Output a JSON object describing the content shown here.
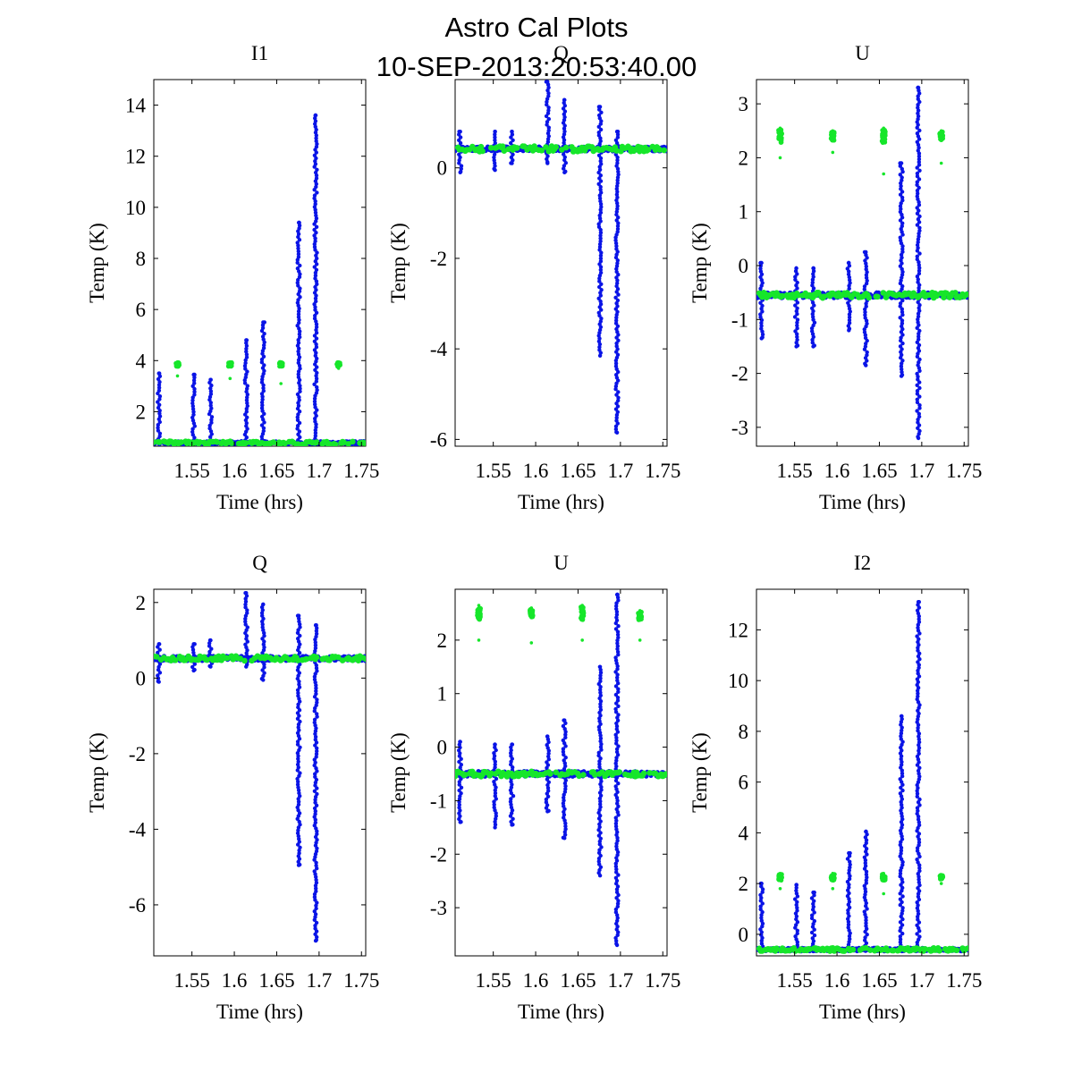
{
  "figure": {
    "title_lines": [
      "Astro Cal Plots",
      "10-SEP-2013:20:53:40.00"
    ],
    "colors": {
      "cal_series": "#0a14e6",
      "source_series": "#16e62a",
      "background": "#ffffff",
      "axes": "#000000"
    }
  },
  "chart_data": [
    {
      "type": "scatter",
      "title": "I1",
      "xlabel": "Time (hrs)",
      "ylabel": "Temp (K)",
      "xlim": [
        1.505,
        1.755
      ],
      "ylim": [
        0.65,
        15.0
      ],
      "xticks": [
        1.55,
        1.6,
        1.65,
        1.7,
        1.75
      ],
      "xtick_labels": [
        "1.55",
        "1.6",
        "1.65",
        "1.7",
        "1.75"
      ],
      "yticks": [
        2,
        4,
        6,
        8,
        10,
        12,
        14
      ],
      "ytick_labels": [
        "2",
        "4",
        "6",
        "8",
        "10",
        "12",
        "14"
      ],
      "series": [
        {
          "color": "#0a14e6",
          "baseline": 0.78,
          "noise": 0.06,
          "spikes": [
            {
              "x": 1.511,
              "min": 0.75,
              "max": 3.5
            },
            {
              "x": 1.552,
              "min": 0.75,
              "max": 3.45
            },
            {
              "x": 1.572,
              "min": 0.75,
              "max": 3.25
            },
            {
              "x": 1.614,
              "min": 0.75,
              "max": 4.8
            },
            {
              "x": 1.634,
              "min": 0.75,
              "max": 5.5
            },
            {
              "x": 1.676,
              "min": 0.75,
              "max": 9.4
            },
            {
              "x": 1.696,
              "min": 0.75,
              "max": 13.6
            }
          ]
        },
        {
          "color": "#16e62a",
          "baseline": 0.78,
          "noise": 0.06,
          "clusters": [
            {
              "x": 1.533,
              "center": 3.85,
              "min": 3.4,
              "max": 3.95
            },
            {
              "x": 1.595,
              "center": 3.85,
              "min": 3.3,
              "max": 3.95
            },
            {
              "x": 1.655,
              "center": 3.85,
              "min": 3.1,
              "max": 3.95
            },
            {
              "x": 1.723,
              "center": 3.85,
              "min": 3.7,
              "max": 3.95
            }
          ]
        }
      ]
    },
    {
      "type": "scatter",
      "title": "Q",
      "xlabel": "Time (hrs)",
      "ylabel": "Temp (K)",
      "xlim": [
        1.505,
        1.755
      ],
      "ylim": [
        -6.15,
        1.95
      ],
      "xticks": [
        1.55,
        1.6,
        1.65,
        1.7,
        1.75
      ],
      "xtick_labels": [
        "1.55",
        "1.6",
        "1.65",
        "1.7",
        "1.75"
      ],
      "yticks": [
        -6,
        -4,
        -2,
        0
      ],
      "ytick_labels": [
        "-6",
        "-4",
        "-2",
        "0"
      ],
      "series": [
        {
          "color": "#0a14e6",
          "baseline": 0.42,
          "noise": 0.05,
          "spikes": [
            {
              "x": 1.511,
              "min": -0.1,
              "max": 0.8
            },
            {
              "x": 1.552,
              "min": -0.05,
              "max": 0.8
            },
            {
              "x": 1.572,
              "min": 0.1,
              "max": 0.8
            },
            {
              "x": 1.614,
              "min": 0.1,
              "max": 1.9
            },
            {
              "x": 1.634,
              "min": -0.1,
              "max": 1.5
            },
            {
              "x": 1.676,
              "min": -4.15,
              "max": 1.35
            },
            {
              "x": 1.696,
              "min": -5.85,
              "max": 0.8
            }
          ]
        },
        {
          "color": "#16e62a",
          "baseline": 0.42,
          "noise": 0.06,
          "clusters": []
        }
      ]
    },
    {
      "type": "scatter",
      "title": "U",
      "xlabel": "Time (hrs)",
      "ylabel": "Temp (K)",
      "xlim": [
        1.505,
        1.755
      ],
      "ylim": [
        -3.35,
        3.45
      ],
      "xticks": [
        1.55,
        1.6,
        1.65,
        1.7,
        1.75
      ],
      "xtick_labels": [
        "1.55",
        "1.6",
        "1.65",
        "1.7",
        "1.75"
      ],
      "yticks": [
        -3,
        -2,
        -1,
        0,
        1,
        2,
        3
      ],
      "ytick_labels": [
        "-3",
        "-2",
        "-1",
        "0",
        "1",
        "2",
        "3"
      ],
      "series": [
        {
          "color": "#0a14e6",
          "baseline": -0.55,
          "noise": 0.05,
          "spikes": [
            {
              "x": 1.511,
              "min": -1.35,
              "max": 0.05
            },
            {
              "x": 1.552,
              "min": -1.5,
              "max": -0.05
            },
            {
              "x": 1.572,
              "min": -1.5,
              "max": -0.05
            },
            {
              "x": 1.614,
              "min": -1.2,
              "max": 0.05
            },
            {
              "x": 1.634,
              "min": -1.85,
              "max": 0.25
            },
            {
              "x": 1.676,
              "min": -2.05,
              "max": 1.9
            },
            {
              "x": 1.696,
              "min": -3.2,
              "max": 3.3
            }
          ]
        },
        {
          "color": "#16e62a",
          "baseline": -0.55,
          "noise": 0.05,
          "clusters": [
            {
              "x": 1.533,
              "center": 2.4,
              "min": 2.0,
              "max": 2.55
            },
            {
              "x": 1.595,
              "center": 2.4,
              "min": 2.1,
              "max": 2.5
            },
            {
              "x": 1.655,
              "center": 2.4,
              "min": 1.7,
              "max": 2.55
            },
            {
              "x": 1.723,
              "center": 2.4,
              "min": 1.9,
              "max": 2.5
            }
          ]
        }
      ]
    },
    {
      "type": "scatter",
      "title": "Q",
      "xlabel": "Time (hrs)",
      "ylabel": "Temp (K)",
      "xlim": [
        1.505,
        1.755
      ],
      "ylim": [
        -7.35,
        2.35
      ],
      "xticks": [
        1.55,
        1.6,
        1.65,
        1.7,
        1.75
      ],
      "xtick_labels": [
        "1.55",
        "1.6",
        "1.65",
        "1.7",
        "1.75"
      ],
      "yticks": [
        -6,
        -4,
        -2,
        0,
        2
      ],
      "ytick_labels": [
        "-6",
        "-4",
        "-2",
        "0",
        "2"
      ],
      "series": [
        {
          "color": "#0a14e6",
          "baseline": 0.52,
          "noise": 0.06,
          "spikes": [
            {
              "x": 1.511,
              "min": -0.1,
              "max": 0.9
            },
            {
              "x": 1.552,
              "min": 0.2,
              "max": 0.9
            },
            {
              "x": 1.572,
              "min": 0.3,
              "max": 1.0
            },
            {
              "x": 1.614,
              "min": 0.3,
              "max": 2.25
            },
            {
              "x": 1.634,
              "min": -0.05,
              "max": 1.95
            },
            {
              "x": 1.676,
              "min": -4.95,
              "max": 1.65
            },
            {
              "x": 1.696,
              "min": -6.95,
              "max": 1.4
            }
          ]
        },
        {
          "color": "#16e62a",
          "baseline": 0.52,
          "noise": 0.06,
          "clusters": []
        }
      ]
    },
    {
      "type": "scatter",
      "title": "U",
      "xlabel": "Time (hrs)",
      "ylabel": "Temp (K)",
      "xlim": [
        1.505,
        1.755
      ],
      "ylim": [
        -3.9,
        2.95
      ],
      "xticks": [
        1.55,
        1.6,
        1.65,
        1.7,
        1.75
      ],
      "xtick_labels": [
        "1.55",
        "1.6",
        "1.65",
        "1.7",
        "1.75"
      ],
      "yticks": [
        -3,
        -2,
        -1,
        0,
        1,
        2
      ],
      "ytick_labels": [
        "-3",
        "-2",
        "-1",
        "0",
        "1",
        "2"
      ],
      "series": [
        {
          "color": "#0a14e6",
          "baseline": -0.5,
          "noise": 0.05,
          "spikes": [
            {
              "x": 1.511,
              "min": -1.4,
              "max": 0.1
            },
            {
              "x": 1.552,
              "min": -1.5,
              "max": 0.05
            },
            {
              "x": 1.572,
              "min": -1.45,
              "max": 0.05
            },
            {
              "x": 1.614,
              "min": -1.2,
              "max": 0.2
            },
            {
              "x": 1.634,
              "min": -1.7,
              "max": 0.5
            },
            {
              "x": 1.676,
              "min": -2.4,
              "max": 1.5
            },
            {
              "x": 1.696,
              "min": -3.7,
              "max": 2.85
            }
          ]
        },
        {
          "color": "#16e62a",
          "baseline": -0.5,
          "noise": 0.05,
          "clusters": [
            {
              "x": 1.533,
              "center": 2.5,
              "min": 2.0,
              "max": 2.65
            },
            {
              "x": 1.595,
              "center": 2.5,
              "min": 1.95,
              "max": 2.6
            },
            {
              "x": 1.655,
              "center": 2.5,
              "min": 2.0,
              "max": 2.65
            },
            {
              "x": 1.723,
              "center": 2.45,
              "min": 2.0,
              "max": 2.55
            }
          ]
        }
      ]
    },
    {
      "type": "scatter",
      "title": "I2",
      "xlabel": "Time (hrs)",
      "ylabel": "Temp (K)",
      "xlim": [
        1.505,
        1.755
      ],
      "ylim": [
        -0.85,
        13.6
      ],
      "xticks": [
        1.55,
        1.6,
        1.65,
        1.7,
        1.75
      ],
      "xtick_labels": [
        "1.55",
        "1.6",
        "1.65",
        "1.7",
        "1.75"
      ],
      "yticks": [
        0,
        2,
        4,
        6,
        8,
        10,
        12
      ],
      "ytick_labels": [
        "0",
        "2",
        "4",
        "6",
        "8",
        "10",
        "12"
      ],
      "series": [
        {
          "color": "#0a14e6",
          "baseline": -0.6,
          "noise": 0.06,
          "spikes": [
            {
              "x": 1.511,
              "min": -0.6,
              "max": 2.0
            },
            {
              "x": 1.552,
              "min": -0.6,
              "max": 1.95
            },
            {
              "x": 1.572,
              "min": -0.6,
              "max": 1.65
            },
            {
              "x": 1.614,
              "min": -0.6,
              "max": 3.2
            },
            {
              "x": 1.634,
              "min": -0.6,
              "max": 4.05
            },
            {
              "x": 1.676,
              "min": -0.6,
              "max": 8.6
            },
            {
              "x": 1.696,
              "min": -0.6,
              "max": 13.1
            }
          ]
        },
        {
          "color": "#16e62a",
          "baseline": -0.6,
          "noise": 0.06,
          "clusters": [
            {
              "x": 1.533,
              "center": 2.25,
              "min": 1.8,
              "max": 2.4
            },
            {
              "x": 1.595,
              "center": 2.25,
              "min": 1.8,
              "max": 2.4
            },
            {
              "x": 1.655,
              "center": 2.25,
              "min": 1.6,
              "max": 2.4
            },
            {
              "x": 1.723,
              "center": 2.25,
              "min": 2.0,
              "max": 2.35
            }
          ]
        }
      ]
    }
  ]
}
